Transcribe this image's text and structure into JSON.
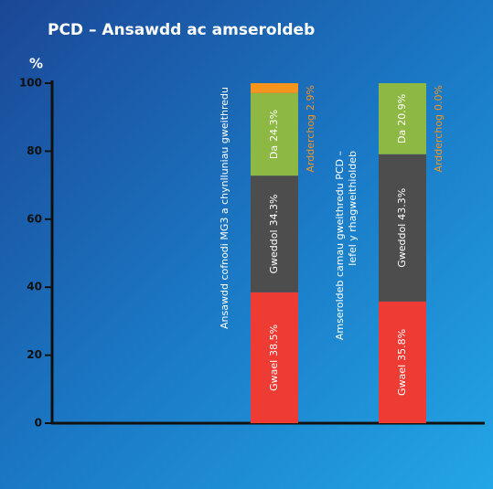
{
  "chart_data": {
    "type": "stacked_bar",
    "title": "PCD – Ansawdd ac amseroldeb",
    "y_label": "%",
    "categories": [
      [
        "Ansawdd cofnodi MG3 a chynlluniau gweithredu"
      ],
      [
        "Amseroldeb camau gweithredu PCD –",
        "lefel y rhagweithioldeb"
      ]
    ],
    "series": [
      {
        "name": "Gwael",
        "color": "#ee3b33",
        "values": [
          38.5,
          35.8
        ],
        "value_labels": [
          "38.5%",
          "35.8%"
        ]
      },
      {
        "name": "Gweddol",
        "color": "#4d4d4d",
        "values": [
          34.3,
          43.3
        ],
        "value_labels": [
          "34.3%",
          "43.3%"
        ]
      },
      {
        "name": "Da",
        "color": "#8db843",
        "values": [
          24.3,
          20.9
        ],
        "value_labels": [
          "24.3%",
          "20.9%"
        ]
      },
      {
        "name": "Ardderchog",
        "color": "#f7941d",
        "values": [
          2.9,
          0.0
        ],
        "value_labels": [
          "2.9%",
          "0.0%"
        ]
      }
    ],
    "ylim": [
      0,
      100
    ],
    "yticks": [
      0,
      20,
      40,
      60,
      80,
      100
    ]
  }
}
